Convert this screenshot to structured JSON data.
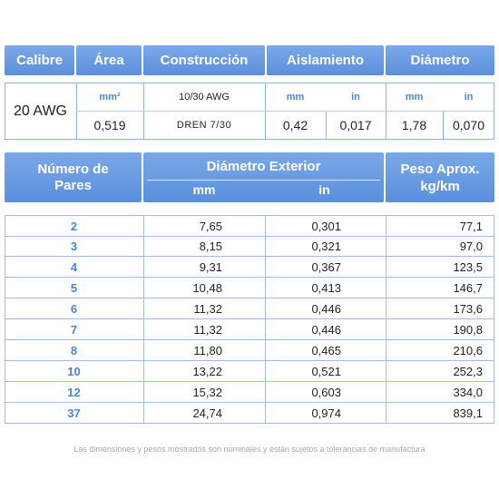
{
  "spec": {
    "headers": {
      "calibre": "Calibre",
      "area": "Área",
      "construccion": "Construcción",
      "aislamiento": "Aislamiento",
      "diametro": "Diámetro"
    },
    "calibre_value": "20 AWG",
    "area_unit": "mm²",
    "area_value": "0,519",
    "construccion_line1": "10/30 AWG",
    "construccion_line2": "DREN 7/30",
    "aislamiento_unit_mm": "mm",
    "aislamiento_unit_in": "in",
    "aislamiento_mm": "0,42",
    "aislamiento_in": "0,017",
    "diametro_unit_mm": "mm",
    "diametro_unit_in": "in",
    "diametro_mm": "1,78",
    "diametro_in": "0,070"
  },
  "table": {
    "headers": {
      "pares_line1": "Número de",
      "pares_line2": "Pares",
      "diametro_exterior": "Diámetro Exterior",
      "mm": "mm",
      "in": "in",
      "peso_line1": "Peso Aprox.",
      "peso_line2": "kg/km"
    },
    "rows": [
      {
        "pares": "2",
        "mm": "7,65",
        "in": "0,301",
        "peso": "77,1"
      },
      {
        "pares": "3",
        "mm": "8,15",
        "in": "0,321",
        "peso": "97,0"
      },
      {
        "pares": "4",
        "mm": "9,31",
        "in": "0,367",
        "peso": "123,5"
      },
      {
        "pares": "5",
        "mm": "10,48",
        "in": "0,413",
        "peso": "146,7"
      },
      {
        "pares": "6",
        "mm": "11,32",
        "in": "0,446",
        "peso": "173,6"
      },
      {
        "pares": "7",
        "mm": "11,32",
        "in": "0,446",
        "peso": "190,8"
      },
      {
        "pares": "8",
        "mm": "11,80",
        "in": "0,465",
        "peso": "210,6"
      },
      {
        "pares": "10",
        "mm": "13,22",
        "in": "0,521",
        "peso": "252,3"
      },
      {
        "pares": "12",
        "mm": "15,32",
        "in": "0,603",
        "peso": "334,0"
      },
      {
        "pares": "37",
        "mm": "24,74",
        "in": "0,974",
        "peso": "839,1"
      }
    ]
  },
  "footer": "Las dimensiones y pesos mostrados son nominales y están sujetos a tolerancias de manufactura",
  "colors": {
    "header_blue": "#5b8fdc",
    "label_blue": "#4a86d8",
    "border": "#9fbbe6"
  }
}
